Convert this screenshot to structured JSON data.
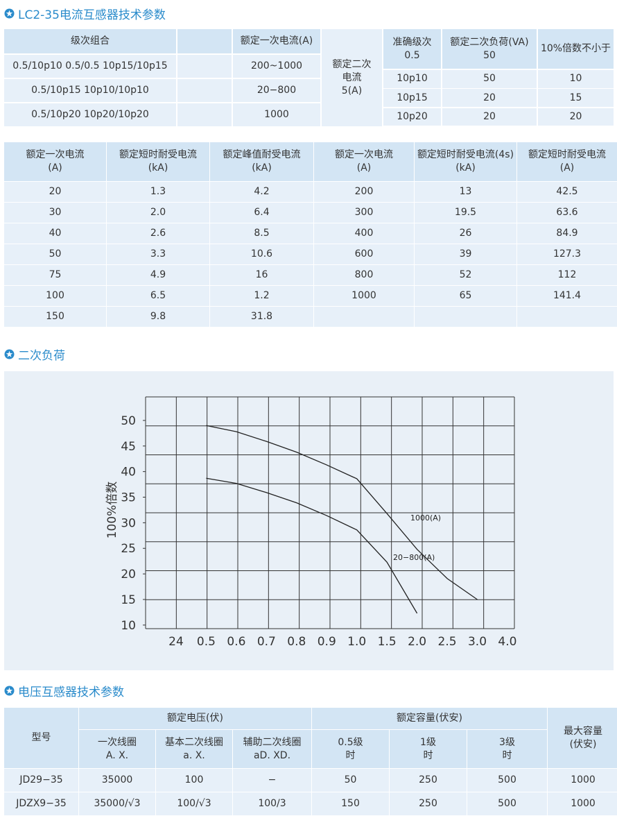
{
  "table1": {
    "title": "LC2-35电流互感器技术参数",
    "headers": {
      "combo": "级次组合",
      "primary": "额定一次电流(A)",
      "secondary": "额定二次\n电流\n5(A)",
      "accuracy": "准确级次",
      "burden": "额定二次负荷(VA)",
      "multiple": "10%倍数不小于"
    },
    "rows": [
      {
        "combo": "0.5/10p10  0.5/0.5  10p15/10p15",
        "primary": "200~1000"
      },
      {
        "combo": "0.5/10p15  10p10/10p10",
        "primary": "20−800"
      },
      {
        "combo": "0.5/10p20  10p20/10p20",
        "primary": "1000"
      }
    ],
    "accuracy_rows": [
      {
        "accuracy": "0.5",
        "burden": "50"
      },
      {
        "accuracy": "10p10",
        "burden": "50",
        "multiple": "10"
      },
      {
        "accuracy": "10p15",
        "burden": "20",
        "multiple": "15"
      },
      {
        "accuracy": "10p20",
        "burden": "20",
        "multiple": "20"
      }
    ]
  },
  "table2": {
    "headers": [
      "额定一次电流\n(A)",
      "额定短时耐受电流\n(kA)",
      "额定峰值耐受电流\n(kA)",
      "额定一次电流\n(A)",
      "额定短时耐受电流(4s)\n(kA)",
      "额定短时耐受电流\n(A)"
    ],
    "left_rows": [
      [
        "20",
        "1.3",
        "4.2"
      ],
      [
        "30",
        "2.0",
        "6.4"
      ],
      [
        "40",
        "2.6",
        "8.5"
      ],
      [
        "50",
        "3.3",
        "10.6"
      ],
      [
        "75",
        "4.9",
        "16"
      ],
      [
        "100",
        "6.5",
        "1.2"
      ],
      [
        "150",
        "9.8",
        "31.8"
      ]
    ],
    "right_rows": [
      [
        "200",
        "13",
        "42.5"
      ],
      [
        "300",
        "19.5",
        "63.6"
      ],
      [
        "400",
        "26",
        "84.9"
      ],
      [
        "600",
        "39",
        "127.3"
      ],
      [
        "800",
        "52",
        "112"
      ],
      [
        "1000",
        "65",
        "141.4"
      ]
    ]
  },
  "chart_data": {
    "type": "line",
    "title": "二次负荷",
    "y_label": "100%倍数",
    "categories": [
      "24",
      "0.5",
      "0.6",
      "0.7",
      "0.8",
      "0.9",
      "1.0",
      "1.5",
      "2.0",
      "2.5",
      "3.0",
      "4.0"
    ],
    "series": [
      {
        "name": "1000(A)",
        "color": "#222222",
        "values": [
          null,
          49,
          47.8,
          45.9,
          43.8,
          41.3,
          38.6,
          31.8,
          24.8,
          19.1,
          15,
          null
        ]
      },
      {
        "name": "20−800(A)",
        "color": "#222222",
        "values": [
          null,
          38.7,
          37.7,
          35.9,
          33.9,
          31.4,
          28.6,
          22.3,
          12.3,
          null,
          null,
          null
        ]
      }
    ],
    "ylim": [
      9.3,
      54.6
    ],
    "yticks": [
      10,
      15,
      20,
      25,
      30,
      35,
      40,
      45,
      50
    ]
  },
  "table3": {
    "title": "电压互感器技术参数",
    "model": "型号",
    "rated_voltage": "额定电压(伏)",
    "rated_capacity": "额定容量(伏安)",
    "max_capacity": "最大容量\n(伏安)",
    "sub_headers": [
      "一次线圈\nA.  X.",
      "基本二次线圈\na.  X.",
      "辅助二次线圈\naD.  XD.",
      "0.5级\n时",
      "1级\n时",
      "3级\n时"
    ],
    "rows": [
      [
        "JD29−35",
        "35000",
        "100",
        "−",
        "50",
        "250",
        "500",
        "1000"
      ],
      [
        "JDZX9−35",
        "35000/√3",
        "100/√3",
        "100/3",
        "150",
        "250",
        "500",
        "1000"
      ]
    ]
  }
}
